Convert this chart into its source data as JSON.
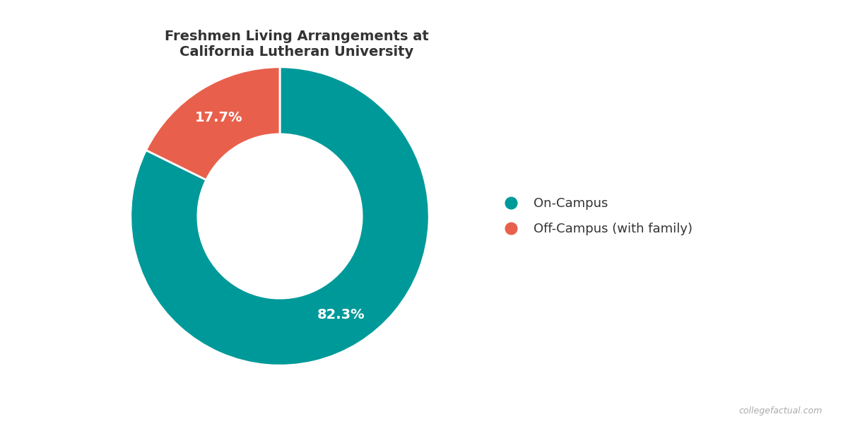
{
  "title": "Freshmen Living Arrangements at\nCalifornia Lutheran University",
  "slices": [
    82.3,
    17.7
  ],
  "labels": [
    "On-Campus",
    "Off-Campus (with family)"
  ],
  "colors": [
    "#009999",
    "#E8604C"
  ],
  "pct_labels": [
    "82.3%",
    "17.7%"
  ],
  "pct_label_colors": [
    "white",
    "white"
  ],
  "donut_hole_ratio": 0.55,
  "start_angle": 90,
  "background_color": "#ffffff",
  "title_fontsize": 14,
  "legend_fontsize": 13,
  "pct_fontsize": 14,
  "watermark": "collegefactual.com"
}
